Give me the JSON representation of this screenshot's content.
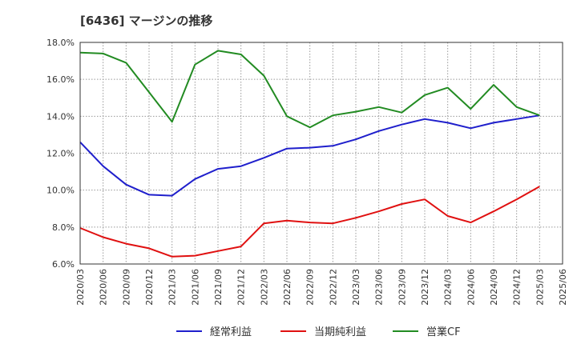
{
  "chart_data": {
    "type": "line",
    "title": "[6436]  マージンの推移",
    "xlabel": "",
    "ylabel": "",
    "x": [
      "2020/03",
      "2020/06",
      "2020/09",
      "2020/12",
      "2021/03",
      "2021/06",
      "2021/09",
      "2021/12",
      "2022/03",
      "2022/06",
      "2022/09",
      "2022/12",
      "2023/03",
      "2023/06",
      "2023/09",
      "2023/12",
      "2024/03",
      "2024/06",
      "2024/09",
      "2024/12",
      "2025/03",
      "2025/06"
    ],
    "yticks": [
      "6.0%",
      "8.0%",
      "10.0%",
      "12.0%",
      "14.0%",
      "16.0%",
      "18.0%"
    ],
    "ylim": [
      6,
      18
    ],
    "grid": true,
    "legend_position": "bottom",
    "series": [
      {
        "name": "経常利益",
        "color": "#1f1fcc",
        "values": [
          12.6,
          11.3,
          10.3,
          9.75,
          9.7,
          10.6,
          11.15,
          11.3,
          11.75,
          12.25,
          12.3,
          12.4,
          12.75,
          13.2,
          13.55,
          13.85,
          13.65,
          13.35,
          13.65,
          13.85,
          14.05,
          null
        ]
      },
      {
        "name": "当期純利益",
        "color": "#e01010",
        "values": [
          7.95,
          7.45,
          7.1,
          6.85,
          6.4,
          6.45,
          6.7,
          6.95,
          8.2,
          8.35,
          8.25,
          8.2,
          8.5,
          8.85,
          9.25,
          9.5,
          8.6,
          8.25,
          8.85,
          9.5,
          10.2,
          null
        ]
      },
      {
        "name": "営業CF",
        "color": "#228b22",
        "values": [
          17.45,
          17.4,
          16.9,
          15.3,
          13.7,
          16.8,
          17.55,
          17.35,
          16.2,
          14.0,
          13.4,
          14.05,
          14.25,
          14.5,
          14.2,
          15.15,
          15.55,
          14.4,
          15.7,
          14.5,
          14.05,
          null
        ]
      }
    ]
  }
}
